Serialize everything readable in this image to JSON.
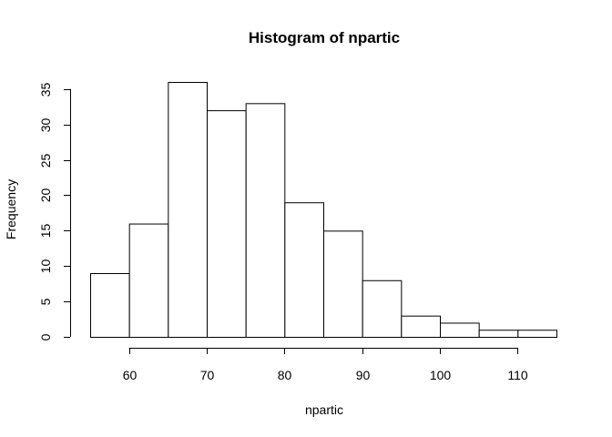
{
  "chart_data": {
    "type": "bar",
    "title": "Histogram of npartic",
    "xlabel": "npartic",
    "ylabel": "Frequency",
    "bin_edges": [
      55,
      60,
      65,
      70,
      75,
      80,
      85,
      90,
      95,
      100,
      105,
      110,
      115
    ],
    "values": [
      9,
      16,
      36,
      32,
      33,
      19,
      15,
      8,
      3,
      2,
      1,
      1
    ],
    "xlim": [
      55,
      115
    ],
    "ylim": [
      0,
      36
    ],
    "xticks": [
      60,
      70,
      80,
      90,
      100,
      110
    ],
    "yticks": [
      0,
      5,
      10,
      15,
      20,
      25,
      30,
      35
    ],
    "grid": false,
    "bar_fill": "#ffffff",
    "bar_stroke": "#000000"
  }
}
